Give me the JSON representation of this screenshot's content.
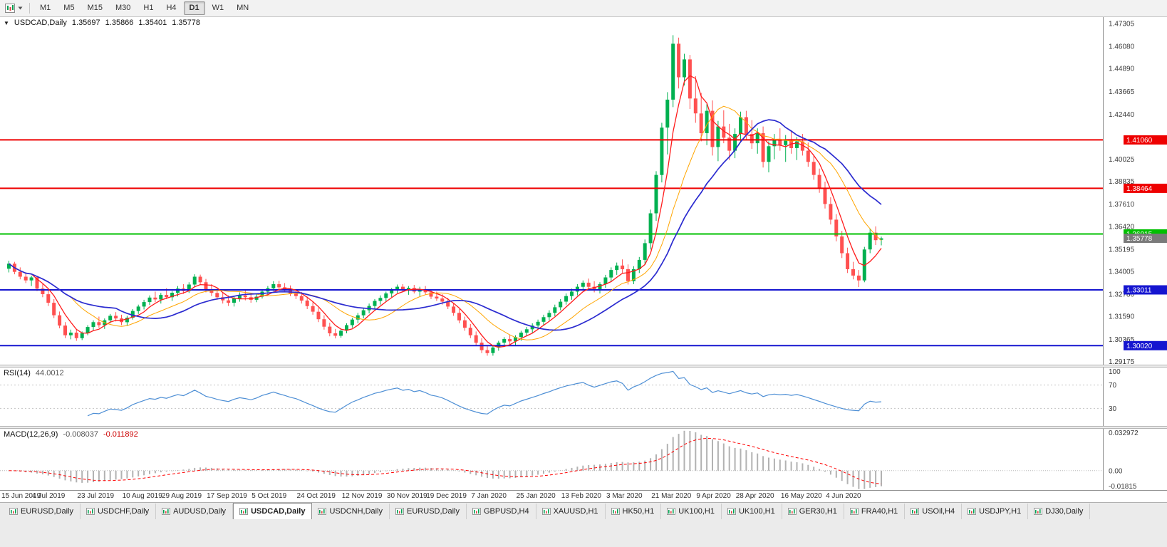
{
  "icons": {
    "caret_down": "▼"
  },
  "toolbar": {
    "timeframes": [
      "M1",
      "M5",
      "M15",
      "M30",
      "H1",
      "H4",
      "D1",
      "W1",
      "MN"
    ],
    "active_timeframe": "D1"
  },
  "main_header": {
    "symbol": "USDCAD,Daily",
    "open": "1.35697",
    "high": "1.35866",
    "low": "1.35401",
    "close": "1.35778"
  },
  "rsi_header": {
    "name": "RSI(14)",
    "value": "44.0012"
  },
  "macd_header": {
    "name": "MACD(12,26,9)",
    "value": "-0.008037",
    "signal_value": "-0.011892"
  },
  "tabs": {
    "active_index": 3,
    "items": [
      "EURUSD,Daily",
      "USDCHF,Daily",
      "AUDUSD,Daily",
      "USDCAD,Daily",
      "USDCNH,Daily",
      "EURUSD,Daily",
      "GBPUSD,H4",
      "XAUUSD,H1",
      "HK50,H1",
      "UK100,H1",
      "UK100,H1",
      "GER30,H1",
      "FRA40,H1",
      "USOil,H4",
      "USDJPY,H1",
      "DJ30,Daily"
    ]
  },
  "chart_data": {
    "type": "candlestick",
    "title": "USDCAD,Daily",
    "grid": false,
    "ylim": [
      1.29,
      1.4765
    ],
    "y_ticks": [
      "1.47305",
      "1.46080",
      "1.44890",
      "1.43665",
      "1.42440",
      "1.40025",
      "1.38835",
      "1.37610",
      "1.36420",
      "1.35195",
      "1.34005",
      "1.32780",
      "1.31590",
      "1.30365",
      "1.29175"
    ],
    "hlines": [
      {
        "value": 1.4106,
        "label": "1.41060",
        "color": "#ee0000"
      },
      {
        "value": 1.38464,
        "label": "1.38464",
        "color": "#ee0000"
      },
      {
        "value": 1.36015,
        "label": "1.36015",
        "color": "#00c000"
      },
      {
        "value": 1.33011,
        "label": "1.33011",
        "color": "#1515d0"
      },
      {
        "value": 1.3002,
        "label": "1.30020",
        "color": "#1515d0"
      }
    ],
    "current_price": {
      "value": 1.35778,
      "label": "1.35778",
      "color": "#7a7a7a"
    },
    "up_color": "#00b050",
    "down_color": "#ff5050",
    "moving_averages": [
      {
        "period": 5,
        "color": "#ff1a1a",
        "width": 1.3
      },
      {
        "period": 12,
        "color": "#ffa500",
        "width": 1.0
      },
      {
        "period": 20,
        "color": "#2b2bd0",
        "width": 1.7
      }
    ],
    "x_labels": [
      {
        "i": 0,
        "label": "15 Jun 2019"
      },
      {
        "i": 8,
        "label": "4 Jul 2019"
      },
      {
        "i": 16,
        "label": "23 Jul 2019"
      },
      {
        "i": 24,
        "label": "10 Aug 2019"
      },
      {
        "i": 31,
        "label": "29 Aug 2019"
      },
      {
        "i": 39,
        "label": "17 Sep 2019"
      },
      {
        "i": 47,
        "label": "5 Oct 2019"
      },
      {
        "i": 55,
        "label": "24 Oct 2019"
      },
      {
        "i": 63,
        "label": "12 Nov 2019"
      },
      {
        "i": 71,
        "label": "30 Nov 2019"
      },
      {
        "i": 78,
        "label": "19 Dec 2019"
      },
      {
        "i": 86,
        "label": "7 Jan 2020"
      },
      {
        "i": 94,
        "label": "25 Jan 2020"
      },
      {
        "i": 102,
        "label": "13 Feb 2020"
      },
      {
        "i": 110,
        "label": "3 Mar 2020"
      },
      {
        "i": 118,
        "label": "21 Mar 2020"
      },
      {
        "i": 126,
        "label": "9 Apr 2020"
      },
      {
        "i": 133,
        "label": "28 Apr 2020"
      },
      {
        "i": 141,
        "label": "16 May 2020"
      },
      {
        "i": 149,
        "label": "4 Jun 2020"
      }
    ],
    "rsi": {
      "period": 14,
      "color": "#4e8fd5",
      "levels": [
        70,
        30
      ],
      "scale_labels": [
        {
          "value": 100,
          "label": "100"
        },
        {
          "value": 70,
          "label": "70"
        },
        {
          "value": 30,
          "label": "30"
        }
      ]
    },
    "macd": {
      "fast": 12,
      "slow": 26,
      "signal": 9,
      "histogram_color": "#b2b2b2",
      "signal_color": "#ff0000",
      "labels": {
        "top": "0.032972",
        "zero": "0.00",
        "bottom": "-0.01815"
      }
    },
    "candles": [
      [
        1.3415,
        1.3458,
        1.3395,
        1.3442
      ],
      [
        1.3442,
        1.3452,
        1.3385,
        1.3398
      ],
      [
        1.3398,
        1.3422,
        1.3358,
        1.3372
      ],
      [
        1.3372,
        1.3395,
        1.3338,
        1.3352
      ],
      [
        1.3352,
        1.3378,
        1.3322,
        1.3368
      ],
      [
        1.3368,
        1.3375,
        1.3295,
        1.3308
      ],
      [
        1.3308,
        1.3332,
        1.3262,
        1.3278
      ],
      [
        1.3278,
        1.3302,
        1.3215,
        1.3232
      ],
      [
        1.3232,
        1.3252,
        1.315,
        1.3165
      ],
      [
        1.3165,
        1.3185,
        1.3095,
        1.311
      ],
      [
        1.311,
        1.3128,
        1.3042,
        1.3058
      ],
      [
        1.3058,
        1.3088,
        1.3036,
        1.3072
      ],
      [
        1.3072,
        1.3092,
        1.3028,
        1.3042
      ],
      [
        1.3042,
        1.3078,
        1.3032,
        1.3068
      ],
      [
        1.3068,
        1.3112,
        1.3058,
        1.3102
      ],
      [
        1.3102,
        1.3138,
        1.3082,
        1.3128
      ],
      [
        1.3128,
        1.3158,
        1.3098,
        1.3112
      ],
      [
        1.3112,
        1.3148,
        1.3092,
        1.3138
      ],
      [
        1.3138,
        1.3172,
        1.3122,
        1.3162
      ],
      [
        1.3162,
        1.3182,
        1.3132,
        1.3148
      ],
      [
        1.3148,
        1.3168,
        1.3112,
        1.3128
      ],
      [
        1.3128,
        1.3162,
        1.3108,
        1.3152
      ],
      [
        1.3152,
        1.3198,
        1.3142,
        1.3188
      ],
      [
        1.3188,
        1.3222,
        1.3172,
        1.3212
      ],
      [
        1.3212,
        1.3248,
        1.3196,
        1.3236
      ],
      [
        1.3236,
        1.3272,
        1.322,
        1.326
      ],
      [
        1.326,
        1.3292,
        1.3235,
        1.325
      ],
      [
        1.325,
        1.3285,
        1.3228,
        1.3274
      ],
      [
        1.3274,
        1.331,
        1.3252,
        1.3262
      ],
      [
        1.3262,
        1.3295,
        1.3242,
        1.3286
      ],
      [
        1.3286,
        1.3322,
        1.3266,
        1.3308
      ],
      [
        1.3308,
        1.3332,
        1.328,
        1.3295
      ],
      [
        1.3295,
        1.3342,
        1.3285,
        1.333
      ],
      [
        1.333,
        1.3385,
        1.3315,
        1.3372
      ],
      [
        1.3372,
        1.3383,
        1.3328,
        1.3342
      ],
      [
        1.3342,
        1.336,
        1.3288,
        1.3302
      ],
      [
        1.3302,
        1.3332,
        1.3268,
        1.3285
      ],
      [
        1.3285,
        1.3312,
        1.3248,
        1.3262
      ],
      [
        1.3262,
        1.3288,
        1.3228,
        1.3245
      ],
      [
        1.3245,
        1.3272,
        1.3215,
        1.3232
      ],
      [
        1.3232,
        1.3265,
        1.3212,
        1.3255
      ],
      [
        1.3255,
        1.3288,
        1.3238,
        1.3272
      ],
      [
        1.3272,
        1.3298,
        1.3245,
        1.3262
      ],
      [
        1.3262,
        1.3282,
        1.3232,
        1.3248
      ],
      [
        1.3248,
        1.3278,
        1.3235,
        1.3265
      ],
      [
        1.3265,
        1.3302,
        1.3255,
        1.3292
      ],
      [
        1.3292,
        1.3322,
        1.3272,
        1.331
      ],
      [
        1.331,
        1.3348,
        1.3295,
        1.3332
      ],
      [
        1.3332,
        1.335,
        1.3302,
        1.3315
      ],
      [
        1.3315,
        1.3338,
        1.3288,
        1.33
      ],
      [
        1.33,
        1.3325,
        1.3268,
        1.3282
      ],
      [
        1.3282,
        1.3305,
        1.3252,
        1.3268
      ],
      [
        1.3268,
        1.329,
        1.3228,
        1.3244
      ],
      [
        1.3244,
        1.3265,
        1.3198,
        1.3214
      ],
      [
        1.3214,
        1.3235,
        1.3168,
        1.3184
      ],
      [
        1.3184,
        1.3205,
        1.3128,
        1.3144
      ],
      [
        1.3144,
        1.3165,
        1.3088,
        1.3104
      ],
      [
        1.3104,
        1.3125,
        1.3052,
        1.3068
      ],
      [
        1.3068,
        1.3092,
        1.3041,
        1.3055
      ],
      [
        1.3055,
        1.3092,
        1.3045,
        1.3082
      ],
      [
        1.3082,
        1.3122,
        1.3068,
        1.3112
      ],
      [
        1.3112,
        1.3152,
        1.3098,
        1.3142
      ],
      [
        1.3142,
        1.3178,
        1.3122,
        1.3165
      ],
      [
        1.3165,
        1.3202,
        1.3148,
        1.3192
      ],
      [
        1.3192,
        1.3228,
        1.3175,
        1.3215
      ],
      [
        1.3215,
        1.3252,
        1.3198,
        1.3242
      ],
      [
        1.3242,
        1.3272,
        1.3222,
        1.3258
      ],
      [
        1.3258,
        1.3292,
        1.3238,
        1.3282
      ],
      [
        1.3282,
        1.3312,
        1.3262,
        1.3302
      ],
      [
        1.3302,
        1.333,
        1.3285,
        1.3318
      ],
      [
        1.3318,
        1.3332,
        1.3288,
        1.3298
      ],
      [
        1.3298,
        1.3322,
        1.3275,
        1.3312
      ],
      [
        1.3312,
        1.3328,
        1.3282,
        1.3292
      ],
      [
        1.3292,
        1.3318,
        1.3268,
        1.3305
      ],
      [
        1.3305,
        1.3322,
        1.3275,
        1.3288
      ],
      [
        1.3288,
        1.3302,
        1.3252,
        1.3265
      ],
      [
        1.3265,
        1.3292,
        1.3242,
        1.3255
      ],
      [
        1.3255,
        1.3278,
        1.3222,
        1.3238
      ],
      [
        1.3238,
        1.3258,
        1.3198,
        1.3212
      ],
      [
        1.3212,
        1.3232,
        1.3162,
        1.3178
      ],
      [
        1.3178,
        1.3198,
        1.3122,
        1.3138
      ],
      [
        1.3138,
        1.3158,
        1.3082,
        1.3098
      ],
      [
        1.3098,
        1.3118,
        1.3042,
        1.3058
      ],
      [
        1.3058,
        1.3078,
        1.3002,
        1.3018
      ],
      [
        1.3018,
        1.3042,
        1.2962,
        1.2978
      ],
      [
        1.2978,
        1.3002,
        1.2948,
        1.2962
      ],
      [
        1.2962,
        1.3,
        1.2948,
        1.2992
      ],
      [
        1.2992,
        1.3028,
        1.2975,
        1.3018
      ],
      [
        1.3018,
        1.3048,
        1.2998,
        1.3038
      ],
      [
        1.3038,
        1.3062,
        1.3008,
        1.3025
      ],
      [
        1.3025,
        1.3058,
        1.3005,
        1.3048
      ],
      [
        1.3048,
        1.3082,
        1.3028,
        1.3072
      ],
      [
        1.3072,
        1.3102,
        1.3052,
        1.309
      ],
      [
        1.309,
        1.3122,
        1.3068,
        1.311
      ],
      [
        1.311,
        1.3142,
        1.3088,
        1.313
      ],
      [
        1.313,
        1.3168,
        1.3112,
        1.3155
      ],
      [
        1.3155,
        1.3192,
        1.3138,
        1.3178
      ],
      [
        1.3178,
        1.3222,
        1.316,
        1.3208
      ],
      [
        1.3208,
        1.3252,
        1.3192,
        1.3238
      ],
      [
        1.3238,
        1.3282,
        1.3222,
        1.3268
      ],
      [
        1.3268,
        1.3308,
        1.3248,
        1.3292
      ],
      [
        1.3292,
        1.3332,
        1.3272,
        1.3318
      ],
      [
        1.3318,
        1.3352,
        1.3298,
        1.334
      ],
      [
        1.334,
        1.3362,
        1.3302,
        1.3318
      ],
      [
        1.3318,
        1.3348,
        1.3288,
        1.3302
      ],
      [
        1.3302,
        1.3342,
        1.3282,
        1.3332
      ],
      [
        1.3332,
        1.3382,
        1.3312,
        1.3368
      ],
      [
        1.3368,
        1.3422,
        1.3348,
        1.3408
      ],
      [
        1.3408,
        1.3448,
        1.3382,
        1.3432
      ],
      [
        1.3432,
        1.3465,
        1.3392,
        1.3412
      ],
      [
        1.3412,
        1.3438,
        1.333,
        1.3348
      ],
      [
        1.3348,
        1.3428,
        1.3332,
        1.3412
      ],
      [
        1.3412,
        1.3478,
        1.3392,
        1.3462
      ],
      [
        1.3462,
        1.3572,
        1.3438,
        1.3552
      ],
      [
        1.3552,
        1.3732,
        1.3518,
        1.3712
      ],
      [
        1.3712,
        1.3938,
        1.3672,
        1.3918
      ],
      [
        1.3918,
        1.4198,
        1.3878,
        1.4172
      ],
      [
        1.4172,
        1.4362,
        1.4028,
        1.4322
      ],
      [
        1.4322,
        1.4668,
        1.4282,
        1.4622
      ],
      [
        1.4622,
        1.4655,
        1.4382,
        1.4442
      ],
      [
        1.4442,
        1.4568,
        1.4398,
        1.4538
      ],
      [
        1.4538,
        1.4562,
        1.4272,
        1.4328
      ],
      [
        1.4328,
        1.4448,
        1.4198,
        1.4248
      ],
      [
        1.4248,
        1.4358,
        1.4098,
        1.4142
      ],
      [
        1.4142,
        1.4298,
        1.4078,
        1.4262
      ],
      [
        1.4262,
        1.4318,
        1.4022,
        1.4068
      ],
      [
        1.4068,
        1.4208,
        1.3992,
        1.4178
      ],
      [
        1.4178,
        1.4265,
        1.4088,
        1.4118
      ],
      [
        1.4118,
        1.4192,
        1.3998,
        1.4048
      ],
      [
        1.4048,
        1.4168,
        1.4008,
        1.4138
      ],
      [
        1.4138,
        1.4258,
        1.4092,
        1.4228
      ],
      [
        1.4228,
        1.4262,
        1.4108,
        1.4138
      ],
      [
        1.4138,
        1.4212,
        1.4058,
        1.4088
      ],
      [
        1.4088,
        1.4168,
        1.4032,
        1.4142
      ],
      [
        1.4142,
        1.4178,
        1.3958,
        1.3988
      ],
      [
        1.3988,
        1.4098,
        1.3932,
        1.4072
      ],
      [
        1.4072,
        1.4138,
        1.4002,
        1.4108
      ],
      [
        1.4108,
        1.4168,
        1.4048,
        1.4078
      ],
      [
        1.4078,
        1.4132,
        1.3988,
        1.4102
      ],
      [
        1.4102,
        1.4158,
        1.4032,
        1.4062
      ],
      [
        1.4062,
        1.4122,
        1.3998,
        1.4098
      ],
      [
        1.4098,
        1.4138,
        1.4022,
        1.4048
      ],
      [
        1.4048,
        1.4092,
        1.3962,
        1.3988
      ],
      [
        1.3988,
        1.4022,
        1.3892,
        1.3918
      ],
      [
        1.3918,
        1.3952,
        1.3822,
        1.3848
      ],
      [
        1.3848,
        1.3882,
        1.3738,
        1.3762
      ],
      [
        1.3762,
        1.3798,
        1.3652,
        1.3678
      ],
      [
        1.3678,
        1.3708,
        1.3562,
        1.3588
      ],
      [
        1.3588,
        1.3618,
        1.3472,
        1.3498
      ],
      [
        1.3498,
        1.3528,
        1.3392,
        1.3412
      ],
      [
        1.3412,
        1.3452,
        1.3358,
        1.3378
      ],
      [
        1.3378,
        1.3408,
        1.3316,
        1.3352
      ],
      [
        1.3352,
        1.3532,
        1.3342,
        1.3518
      ],
      [
        1.3518,
        1.3628,
        1.3498,
        1.3608
      ],
      [
        1.3608,
        1.3642,
        1.3542,
        1.3568
      ],
      [
        1.35697,
        1.35866,
        1.35401,
        1.35778
      ]
    ]
  }
}
